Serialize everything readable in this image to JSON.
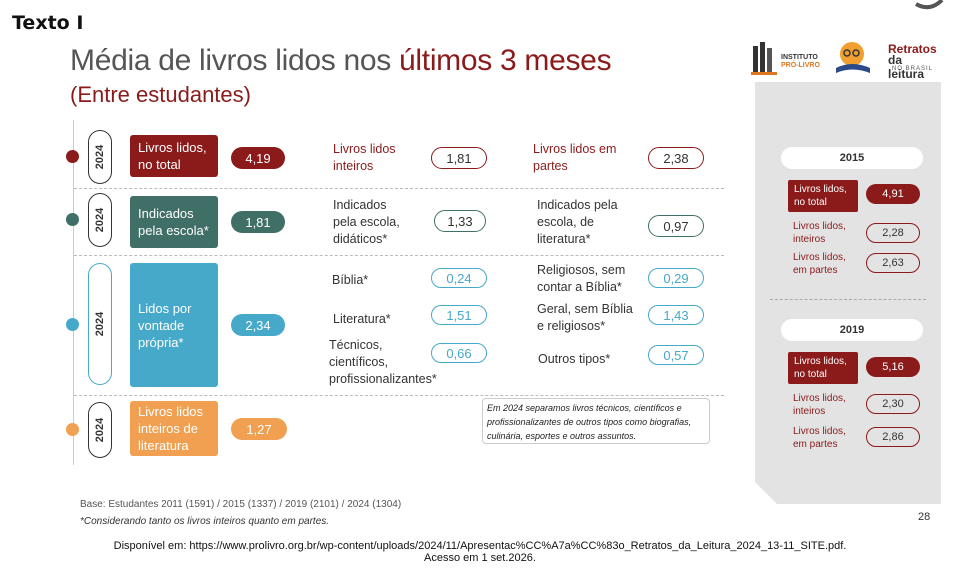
{
  "header_label": "Texto I",
  "title": {
    "prefix": "Média de livros lidos nos ",
    "highlight": "últimos 3 meses"
  },
  "subtitle": "(Entre estudantes)",
  "logos": {
    "left_line1": "INSTITUTO",
    "left_line2": "PRÓ-LIVRO",
    "right_line1": "Retratos",
    "right_line2": "da leitura",
    "right_line3": "NO BRASIL"
  },
  "rows": [
    {
      "year": "2024",
      "category": "Livros lidos, no total",
      "value": "4,19",
      "color": "#8b1a1a",
      "details": [
        {
          "label": "Livros lidos inteiros",
          "value": "1,81"
        },
        {
          "label": "Livros lidos em partes",
          "value": "2,38"
        }
      ]
    },
    {
      "year": "2024",
      "category": "Indicados pela escola*",
      "value": "1,81",
      "color": "#3f6f66",
      "details": [
        {
          "label": "Indicados pela escola, didáticos*",
          "value": "1,33"
        },
        {
          "label": "Indicados pela escola, de literatura*",
          "value": "0,97"
        }
      ]
    },
    {
      "year": "2024",
      "category": "Lidos por vontade própria*",
      "value": "2,34",
      "color": "#46a9c9",
      "details": [
        {
          "label": "Bíblia*",
          "value": "0,24"
        },
        {
          "label": "Religiosos, sem contar a Bíblia*",
          "value": "0,29"
        },
        {
          "label": "Literatura*",
          "value": "1,51"
        },
        {
          "label": "Geral, sem Bíblia e religiosos*",
          "value": "1,43"
        },
        {
          "label": "Técnicos, científicos, profissionalizantes*",
          "value": "0,66"
        },
        {
          "label": "Outros tipos*",
          "value": "0,57"
        }
      ]
    },
    {
      "year": "2024",
      "category": "Livros lidos inteiros de literatura",
      "value": "1,27",
      "color": "#f0a050",
      "details": []
    }
  ],
  "note": "Em 2024 separamos livros técnicos, científicos e profissionalizantes de outros tipos como biografias, culinária, esportes e outros assuntos.",
  "comparison": [
    {
      "year": "2015",
      "total_label": "Livros lidos, no total",
      "total": "4,91",
      "inteiros_label": "Livros lidos, inteiros",
      "inteiros": "2,28",
      "partes_label": "Livros lidos, em partes",
      "partes": "2,63"
    },
    {
      "year": "2019",
      "total_label": "Livros lidos, no total",
      "total": "5,16",
      "inteiros_label": "Livros lidos, inteiros",
      "inteiros": "2,30",
      "partes_label": "Livros lidos, em partes",
      "partes": "2,86"
    }
  ],
  "base": "Base: Estudantes 2011 (1591) / 2015 (1337) / 2019 (2101) / 2024 (1304)",
  "footnote": "*Considerando tanto os livros inteiros quanto em partes.",
  "page_number": "28",
  "source_line1": "Disponível em: https://www.prolivro.org.br/wp-content/uploads/2024/11/Apresentac%CC%A7a%CC%83o_Retratos_da_Leitura_2024_13-11_SITE.pdf.",
  "source_line2": "Acesso em 1 set.2026."
}
